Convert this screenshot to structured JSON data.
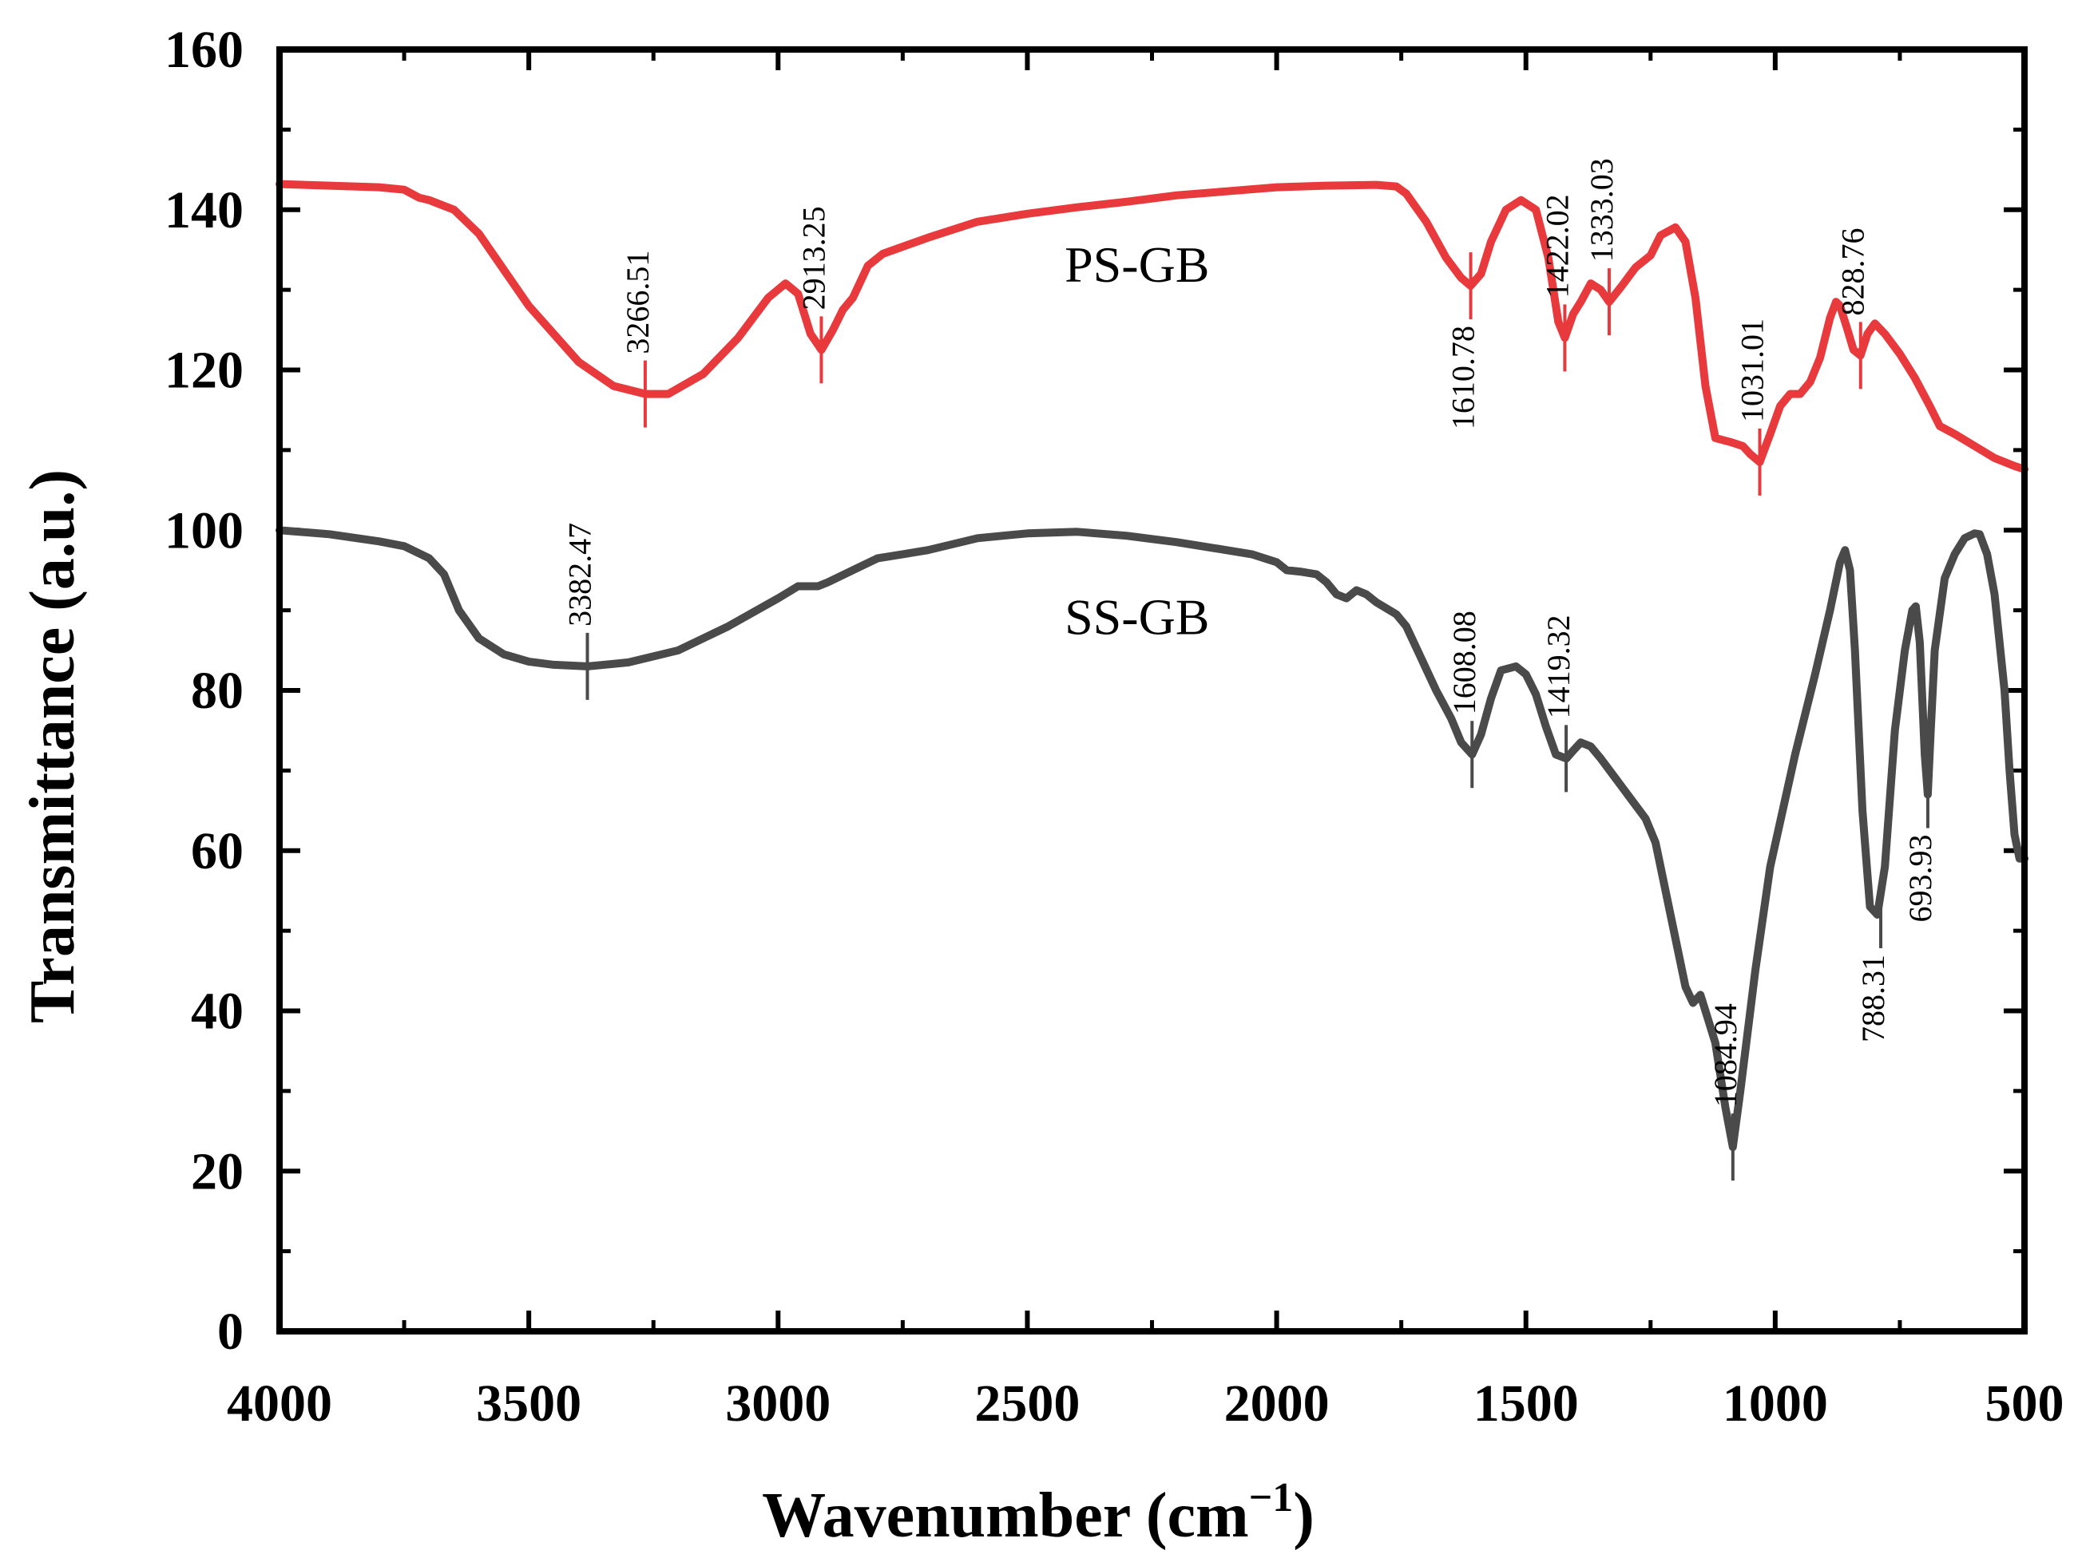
{
  "chart_data": {
    "type": "line",
    "title": "",
    "xlabel": "Wavenumber (cm",
    "xlabel_sup": "−1",
    "xlabel_close": ")",
    "ylabel": "Transmittance (a.u.)",
    "xlim": [
      4000,
      500
    ],
    "ylim": [
      0,
      160
    ],
    "x_ticks": [
      4000,
      3500,
      3000,
      2500,
      2000,
      1500,
      1000,
      500
    ],
    "x_tick_labels": [
      "4000",
      "3500",
      "3000",
      "2500",
      "2000",
      "1500",
      "1000",
      "500"
    ],
    "y_ticks": [
      0,
      20,
      40,
      60,
      80,
      100,
      120,
      140,
      160
    ],
    "y_tick_labels": [
      "0",
      "20",
      "40",
      "60",
      "80",
      "100",
      "120",
      "140",
      "160"
    ],
    "series": [
      {
        "name": "PS-GB",
        "color": "#e8393c",
        "label_at": [
          2280,
          131
        ],
        "points": [
          [
            4000,
            143.2
          ],
          [
            3900,
            143
          ],
          [
            3800,
            142.8
          ],
          [
            3750,
            142.5
          ],
          [
            3720,
            141.5
          ],
          [
            3700,
            141.2
          ],
          [
            3650,
            140
          ],
          [
            3600,
            137
          ],
          [
            3500,
            128
          ],
          [
            3400,
            121
          ],
          [
            3330,
            118
          ],
          [
            3266,
            117
          ],
          [
            3220,
            117
          ],
          [
            3150,
            119.5
          ],
          [
            3080,
            124
          ],
          [
            3020,
            129
          ],
          [
            2985,
            130.8
          ],
          [
            2960,
            129.5
          ],
          [
            2935,
            124.5
          ],
          [
            2913,
            122.5
          ],
          [
            2890,
            125
          ],
          [
            2870,
            127.5
          ],
          [
            2850,
            129
          ],
          [
            2820,
            133
          ],
          [
            2790,
            134.5
          ],
          [
            2700,
            136.5
          ],
          [
            2600,
            138.5
          ],
          [
            2500,
            139.5
          ],
          [
            2400,
            140.3
          ],
          [
            2300,
            141
          ],
          [
            2200,
            141.8
          ],
          [
            2100,
            142.3
          ],
          [
            2000,
            142.8
          ],
          [
            1900,
            143
          ],
          [
            1800,
            143.1
          ],
          [
            1760,
            142.9
          ],
          [
            1740,
            142
          ],
          [
            1700,
            138.5
          ],
          [
            1660,
            134
          ],
          [
            1630,
            131.5
          ],
          [
            1611,
            130.5
          ],
          [
            1590,
            132
          ],
          [
            1570,
            136
          ],
          [
            1540,
            140
          ],
          [
            1510,
            141.2
          ],
          [
            1480,
            140
          ],
          [
            1455,
            134
          ],
          [
            1435,
            126
          ],
          [
            1422,
            124
          ],
          [
            1405,
            127
          ],
          [
            1390,
            128.5
          ],
          [
            1370,
            130.8
          ],
          [
            1350,
            130
          ],
          [
            1333,
            128.5
          ],
          [
            1310,
            130.3
          ],
          [
            1280,
            132.8
          ],
          [
            1250,
            134.3
          ],
          [
            1230,
            136.8
          ],
          [
            1200,
            137.8
          ],
          [
            1180,
            136
          ],
          [
            1160,
            129
          ],
          [
            1140,
            118
          ],
          [
            1120,
            111.5
          ],
          [
            1090,
            111
          ],
          [
            1065,
            110.5
          ],
          [
            1050,
            109.5
          ],
          [
            1031,
            108.5
          ],
          [
            1010,
            112
          ],
          [
            990,
            115.5
          ],
          [
            970,
            117
          ],
          [
            950,
            117
          ],
          [
            930,
            118.5
          ],
          [
            910,
            121.5
          ],
          [
            890,
            126.5
          ],
          [
            878,
            128.5
          ],
          [
            870,
            128
          ],
          [
            855,
            125
          ],
          [
            843,
            122.5
          ],
          [
            829,
            121.8
          ],
          [
            815,
            124.5
          ],
          [
            800,
            125.8
          ],
          [
            780,
            124.5
          ],
          [
            750,
            122
          ],
          [
            720,
            119
          ],
          [
            690,
            115.5
          ],
          [
            670,
            113
          ],
          [
            640,
            112
          ],
          [
            600,
            110.5
          ],
          [
            560,
            109
          ],
          [
            520,
            108
          ],
          [
            500,
            107.6
          ]
        ]
      },
      {
        "name": "SS-GB",
        "color": "#4a4a4a",
        "label_at": [
          2280,
          87
        ],
        "points": [
          [
            4000,
            100
          ],
          [
            3900,
            99.5
          ],
          [
            3800,
            98.6
          ],
          [
            3750,
            98
          ],
          [
            3700,
            96.5
          ],
          [
            3670,
            94.5
          ],
          [
            3640,
            90
          ],
          [
            3600,
            86.5
          ],
          [
            3550,
            84.5
          ],
          [
            3500,
            83.6
          ],
          [
            3450,
            83.2
          ],
          [
            3382,
            83
          ],
          [
            3300,
            83.5
          ],
          [
            3200,
            85
          ],
          [
            3100,
            88
          ],
          [
            3000,
            91.5
          ],
          [
            2960,
            93
          ],
          [
            2920,
            93
          ],
          [
            2900,
            93.5
          ],
          [
            2850,
            95
          ],
          [
            2800,
            96.5
          ],
          [
            2750,
            97
          ],
          [
            2700,
            97.5
          ],
          [
            2600,
            99
          ],
          [
            2500,
            99.6
          ],
          [
            2400,
            99.8
          ],
          [
            2300,
            99.3
          ],
          [
            2200,
            98.5
          ],
          [
            2100,
            97.5
          ],
          [
            2050,
            97
          ],
          [
            2000,
            96
          ],
          [
            1980,
            95
          ],
          [
            1950,
            94.8
          ],
          [
            1920,
            94.5
          ],
          [
            1900,
            93.5
          ],
          [
            1880,
            92
          ],
          [
            1860,
            91.5
          ],
          [
            1840,
            92.5
          ],
          [
            1820,
            92
          ],
          [
            1800,
            91
          ],
          [
            1760,
            89.5
          ],
          [
            1740,
            88
          ],
          [
            1710,
            84
          ],
          [
            1680,
            80
          ],
          [
            1650,
            76.5
          ],
          [
            1630,
            73.5
          ],
          [
            1608,
            72
          ],
          [
            1590,
            74.5
          ],
          [
            1570,
            79
          ],
          [
            1550,
            82.5
          ],
          [
            1520,
            83
          ],
          [
            1500,
            82
          ],
          [
            1480,
            79.5
          ],
          [
            1460,
            75.5
          ],
          [
            1440,
            72
          ],
          [
            1419,
            71.5
          ],
          [
            1405,
            72.5
          ],
          [
            1390,
            73.5
          ],
          [
            1370,
            73
          ],
          [
            1350,
            71.5
          ],
          [
            1320,
            69
          ],
          [
            1290,
            66.5
          ],
          [
            1260,
            64
          ],
          [
            1240,
            61
          ],
          [
            1220,
            55
          ],
          [
            1200,
            49
          ],
          [
            1180,
            43
          ],
          [
            1165,
            41
          ],
          [
            1150,
            42
          ],
          [
            1140,
            40
          ],
          [
            1120,
            36
          ],
          [
            1100,
            28
          ],
          [
            1085,
            23
          ],
          [
            1070,
            30
          ],
          [
            1040,
            45
          ],
          [
            1010,
            58
          ],
          [
            960,
            72
          ],
          [
            920,
            82
          ],
          [
            890,
            90
          ],
          [
            870,
            96
          ],
          [
            860,
            97.5
          ],
          [
            850,
            95
          ],
          [
            840,
            85
          ],
          [
            825,
            65
          ],
          [
            810,
            53
          ],
          [
            795,
            52
          ],
          [
            780,
            58
          ],
          [
            760,
            75
          ],
          [
            740,
            85
          ],
          [
            725,
            90
          ],
          [
            718,
            90.5
          ],
          [
            710,
            86
          ],
          [
            700,
            72
          ],
          [
            694,
            67
          ],
          [
            688,
            75
          ],
          [
            680,
            85
          ],
          [
            660,
            94
          ],
          [
            640,
            97
          ],
          [
            620,
            99
          ],
          [
            600,
            99.6
          ],
          [
            590,
            99.5
          ],
          [
            575,
            97
          ],
          [
            560,
            92
          ],
          [
            540,
            80
          ],
          [
            530,
            70
          ],
          [
            520,
            62
          ],
          [
            510,
            59
          ],
          [
            500,
            59
          ]
        ]
      }
    ],
    "annotations": [
      {
        "series": "PS-GB",
        "x": 3266.51,
        "y": 117,
        "label": "3266.51",
        "color": "#e8393c",
        "text_above": true
      },
      {
        "series": "PS-GB",
        "x": 2913.25,
        "y": 122.5,
        "label": "2913.25",
        "color": "#e8393c",
        "text_above": true
      },
      {
        "series": "PS-GB",
        "x": 1610.78,
        "y": 130.5,
        "label": "1610.78",
        "color": "#e8393c",
        "text_above": false
      },
      {
        "series": "PS-GB",
        "x": 1422.02,
        "y": 124,
        "label": "1422.02",
        "color": "#e8393c",
        "text_above": true
      },
      {
        "series": "PS-GB",
        "x": 1333.03,
        "y": 128.5,
        "label": "1333.03",
        "color": "#e8393c",
        "text_above": true
      },
      {
        "series": "PS-GB",
        "x": 1031.01,
        "y": 108.5,
        "label": "1031.01",
        "color": "#e8393c",
        "text_above": true
      },
      {
        "series": "PS-GB",
        "x": 828.76,
        "y": 121.8,
        "label": "828.76",
        "color": "#e8393c",
        "text_above": true
      },
      {
        "series": "SS-GB",
        "x": 3382.47,
        "y": 83,
        "label": "3382.47",
        "color": "#4a4a4a",
        "text_above": true
      },
      {
        "series": "SS-GB",
        "x": 1608.08,
        "y": 72,
        "label": "1608.08",
        "color": "#4a4a4a",
        "text_above": true
      },
      {
        "series": "SS-GB",
        "x": 1419.32,
        "y": 71.5,
        "label": "1419.32",
        "color": "#4a4a4a",
        "text_above": true
      },
      {
        "series": "SS-GB",
        "x": 1084.94,
        "y": 23,
        "label": "1084.94",
        "color": "#4a4a4a",
        "text_above": true
      },
      {
        "series": "SS-GB",
        "x": 788.31,
        "y": 52,
        "label": "788.31",
        "color": "#4a4a4a",
        "text_above": false
      },
      {
        "series": "SS-GB",
        "x": 693.93,
        "y": 67,
        "label": "693.93",
        "color": "#4a4a4a",
        "text_above": false
      }
    ]
  }
}
